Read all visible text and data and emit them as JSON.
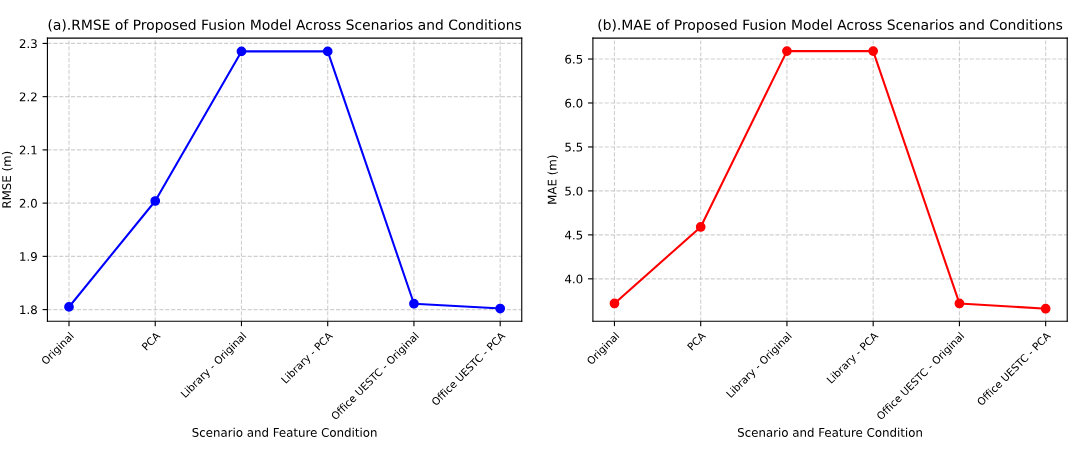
{
  "chart_data": [
    {
      "type": "line",
      "title": "(a).RMSE of Proposed Fusion Model Across Scenarios and Conditions",
      "xlabel": "Scenario and Feature Condition",
      "ylabel": "RMSE (m)",
      "categories": [
        "Original",
        "PCA",
        "Library - Original",
        "Library - PCA",
        "Office UESTC - Original",
        "Office UESTC - PCA"
      ],
      "series": [
        {
          "color": "#0000ff",
          "values": [
            1.805,
            2.004,
            2.285,
            2.285,
            1.811,
            1.802
          ]
        }
      ],
      "ylim": [
        1.778,
        2.31
      ],
      "yticks": [
        {
          "value": 1.8,
          "label": "1.8"
        },
        {
          "value": 1.9,
          "label": "1.9"
        },
        {
          "value": 2.0,
          "label": "2.0"
        },
        {
          "value": 2.1,
          "label": "2.1"
        },
        {
          "value": 2.2,
          "label": "2.2"
        },
        {
          "value": 2.3,
          "label": "2.3"
        }
      ],
      "grid": true,
      "marker": "circle",
      "line_style": "solid"
    },
    {
      "type": "line",
      "title": "(b).MAE of Proposed Fusion Model Across Scenarios and Conditions",
      "xlabel": "Scenario and Feature Condition",
      "ylabel": "MAE (m)",
      "categories": [
        "Original",
        "PCA",
        "Library - Original",
        "Library - PCA",
        "Office UESTC - Original",
        "Office UESTC - PCA"
      ],
      "series": [
        {
          "color": "#ff0000",
          "values": [
            3.72,
            4.59,
            6.59,
            6.59,
            3.72,
            3.66
          ]
        }
      ],
      "ylim": [
        3.517,
        6.738
      ],
      "yticks": [
        {
          "value": 4.0,
          "label": "4.0"
        },
        {
          "value": 4.5,
          "label": "4.5"
        },
        {
          "value": 5.0,
          "label": "5.0"
        },
        {
          "value": 5.5,
          "label": "5.5"
        },
        {
          "value": 6.0,
          "label": "6.0"
        },
        {
          "value": 6.5,
          "label": "6.5"
        }
      ],
      "grid": true,
      "marker": "circle",
      "line_style": "solid"
    }
  ]
}
